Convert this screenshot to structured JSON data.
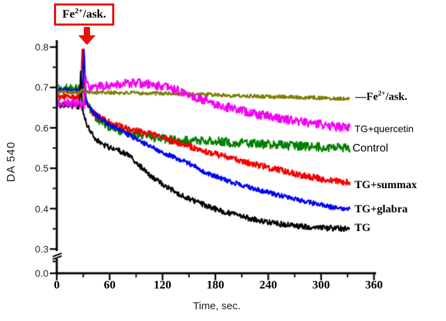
{
  "figure": {
    "annotation": {
      "prefix": "Fe",
      "sup": "2+",
      "suffix": "/ask."
    }
  },
  "chart_data": {
    "type": "line",
    "title": "",
    "xlabel": "Time, sec.",
    "ylabel": "DA 540",
    "xlim": [
      0,
      360
    ],
    "x_ticks": [
      0,
      60,
      120,
      180,
      240,
      300,
      360
    ],
    "x_minor_ticks": [
      30,
      90,
      150,
      210,
      270,
      330
    ],
    "y_ticks": [
      0.8,
      0.7,
      0.6,
      0.5,
      0.4,
      0.3,
      0.0
    ],
    "y_minor_ticks": [
      0.75,
      0.65,
      0.55,
      0.45,
      0.35
    ],
    "y_axis_break": {
      "between": [
        0.0,
        0.3
      ]
    },
    "grid": false,
    "legend_position": "right",
    "event_annotation": {
      "box_text": "Fe2+/ask.",
      "arrow_time_sec": 30
    },
    "series": [
      {
        "name": "Fe2+/ask.",
        "legend": {
          "prefix": "—Fe",
          "sup": "2+",
          "suffix": "/ask."
        },
        "color": "#7d7d00",
        "noise": 0.0045,
        "points": [
          [
            0,
            0.688
          ],
          [
            10,
            0.69
          ],
          [
            20,
            0.688
          ],
          [
            27,
            0.69
          ],
          [
            30,
            0.695
          ],
          [
            33,
            0.688
          ],
          [
            60,
            0.687
          ],
          [
            100,
            0.686
          ],
          [
            150,
            0.684
          ],
          [
            200,
            0.68
          ],
          [
            250,
            0.677
          ],
          [
            290,
            0.675
          ],
          [
            315,
            0.673
          ],
          [
            333,
            0.672
          ]
        ]
      },
      {
        "name": "TG+quercetin",
        "legend": {
          "text": "TG+quercetin"
        },
        "color": "#f400f4",
        "noise": 0.011,
        "points": [
          [
            0,
            0.66
          ],
          [
            10,
            0.662
          ],
          [
            20,
            0.66
          ],
          [
            28,
            0.658
          ],
          [
            31,
            0.655
          ],
          [
            33,
            0.725
          ],
          [
            36,
            0.695
          ],
          [
            45,
            0.7
          ],
          [
            60,
            0.706
          ],
          [
            75,
            0.71
          ],
          [
            95,
            0.71
          ],
          [
            110,
            0.706
          ],
          [
            125,
            0.7
          ],
          [
            140,
            0.69
          ],
          [
            155,
            0.678
          ],
          [
            170,
            0.667
          ],
          [
            185,
            0.655
          ],
          [
            200,
            0.648
          ],
          [
            215,
            0.64
          ],
          [
            230,
            0.633
          ],
          [
            245,
            0.627
          ],
          [
            260,
            0.621
          ],
          [
            275,
            0.616
          ],
          [
            290,
            0.612
          ],
          [
            305,
            0.607
          ],
          [
            320,
            0.602
          ],
          [
            333,
            0.6
          ]
        ]
      },
      {
        "name": "Control",
        "legend": {
          "text": "Control"
        },
        "color": "#008000",
        "noise": 0.011,
        "points": [
          [
            0,
            0.697
          ],
          [
            10,
            0.698
          ],
          [
            20,
            0.696
          ],
          [
            28,
            0.695
          ],
          [
            30,
            0.71
          ],
          [
            32,
            0.68
          ],
          [
            35,
            0.655
          ],
          [
            40,
            0.638
          ],
          [
            45,
            0.625
          ],
          [
            52,
            0.613
          ],
          [
            60,
            0.603
          ],
          [
            70,
            0.594
          ],
          [
            80,
            0.589
          ],
          [
            90,
            0.585
          ],
          [
            105,
            0.578
          ],
          [
            120,
            0.573
          ],
          [
            135,
            0.57
          ],
          [
            150,
            0.567
          ],
          [
            165,
            0.568
          ],
          [
            180,
            0.567
          ],
          [
            200,
            0.564
          ],
          [
            220,
            0.561
          ],
          [
            240,
            0.559
          ],
          [
            260,
            0.556
          ],
          [
            280,
            0.555
          ],
          [
            300,
            0.552
          ],
          [
            318,
            0.551
          ],
          [
            333,
            0.55
          ]
        ]
      },
      {
        "name": "TG+summax",
        "legend": {
          "text": "TG+summax"
        },
        "color": "#f40000",
        "noise": 0.008,
        "points": [
          [
            0,
            0.676
          ],
          [
            10,
            0.678
          ],
          [
            20,
            0.675
          ],
          [
            27,
            0.674
          ],
          [
            29,
            0.8
          ],
          [
            31,
            0.67
          ],
          [
            35,
            0.656
          ],
          [
            40,
            0.64
          ],
          [
            47,
            0.628
          ],
          [
            55,
            0.618
          ],
          [
            65,
            0.609
          ],
          [
            75,
            0.601
          ],
          [
            85,
            0.595
          ],
          [
            95,
            0.59
          ],
          [
            110,
            0.582
          ],
          [
            125,
            0.572
          ],
          [
            140,
            0.561
          ],
          [
            155,
            0.551
          ],
          [
            170,
            0.541
          ],
          [
            185,
            0.532
          ],
          [
            200,
            0.523
          ],
          [
            215,
            0.515
          ],
          [
            230,
            0.507
          ],
          [
            245,
            0.499
          ],
          [
            260,
            0.491
          ],
          [
            275,
            0.484
          ],
          [
            290,
            0.478
          ],
          [
            305,
            0.472
          ],
          [
            320,
            0.467
          ],
          [
            333,
            0.464
          ]
        ]
      },
      {
        "name": "TG+glabra",
        "legend": {
          "text": "TG+glabra"
        },
        "color": "#0000f0",
        "noise": 0.006,
        "points": [
          [
            0,
            0.692
          ],
          [
            10,
            0.694
          ],
          [
            20,
            0.692
          ],
          [
            29,
            0.69
          ],
          [
            31,
            0.8
          ],
          [
            33,
            0.665
          ],
          [
            38,
            0.648
          ],
          [
            44,
            0.634
          ],
          [
            50,
            0.622
          ],
          [
            58,
            0.61
          ],
          [
            66,
            0.6
          ],
          [
            75,
            0.59
          ],
          [
            85,
            0.578
          ],
          [
            95,
            0.566
          ],
          [
            105,
            0.556
          ],
          [
            115,
            0.545
          ],
          [
            125,
            0.535
          ],
          [
            135,
            0.525
          ],
          [
            145,
            0.516
          ],
          [
            155,
            0.507
          ],
          [
            165,
            0.493
          ],
          [
            175,
            0.484
          ],
          [
            185,
            0.476
          ],
          [
            200,
            0.465
          ],
          [
            215,
            0.455
          ],
          [
            230,
            0.446
          ],
          [
            245,
            0.437
          ],
          [
            260,
            0.429
          ],
          [
            275,
            0.421
          ],
          [
            290,
            0.414
          ],
          [
            305,
            0.407
          ],
          [
            320,
            0.401
          ],
          [
            333,
            0.397
          ]
        ]
      },
      {
        "name": "TG",
        "legend": {
          "text": "TG"
        },
        "color": "#000000",
        "noise": 0.007,
        "points": [
          [
            0,
            0.655
          ],
          [
            10,
            0.657
          ],
          [
            20,
            0.654
          ],
          [
            26,
            0.652
          ],
          [
            27,
            0.75
          ],
          [
            29,
            0.648
          ],
          [
            32,
            0.62
          ],
          [
            36,
            0.6
          ],
          [
            40,
            0.585
          ],
          [
            45,
            0.572
          ],
          [
            50,
            0.562
          ],
          [
            56,
            0.555
          ],
          [
            64,
            0.548
          ],
          [
            72,
            0.542
          ],
          [
            78,
            0.536
          ],
          [
            84,
            0.526
          ],
          [
            90,
            0.514
          ],
          [
            96,
            0.502
          ],
          [
            102,
            0.49
          ],
          [
            110,
            0.476
          ],
          [
            118,
            0.463
          ],
          [
            126,
            0.452
          ],
          [
            135,
            0.441
          ],
          [
            145,
            0.43
          ],
          [
            155,
            0.42
          ],
          [
            165,
            0.411
          ],
          [
            175,
            0.403
          ],
          [
            185,
            0.396
          ],
          [
            200,
            0.386
          ],
          [
            215,
            0.378
          ],
          [
            230,
            0.371
          ],
          [
            245,
            0.365
          ],
          [
            260,
            0.36
          ],
          [
            275,
            0.357
          ],
          [
            290,
            0.354
          ],
          [
            305,
            0.352
          ],
          [
            320,
            0.351
          ],
          [
            333,
            0.35
          ]
        ]
      }
    ]
  }
}
